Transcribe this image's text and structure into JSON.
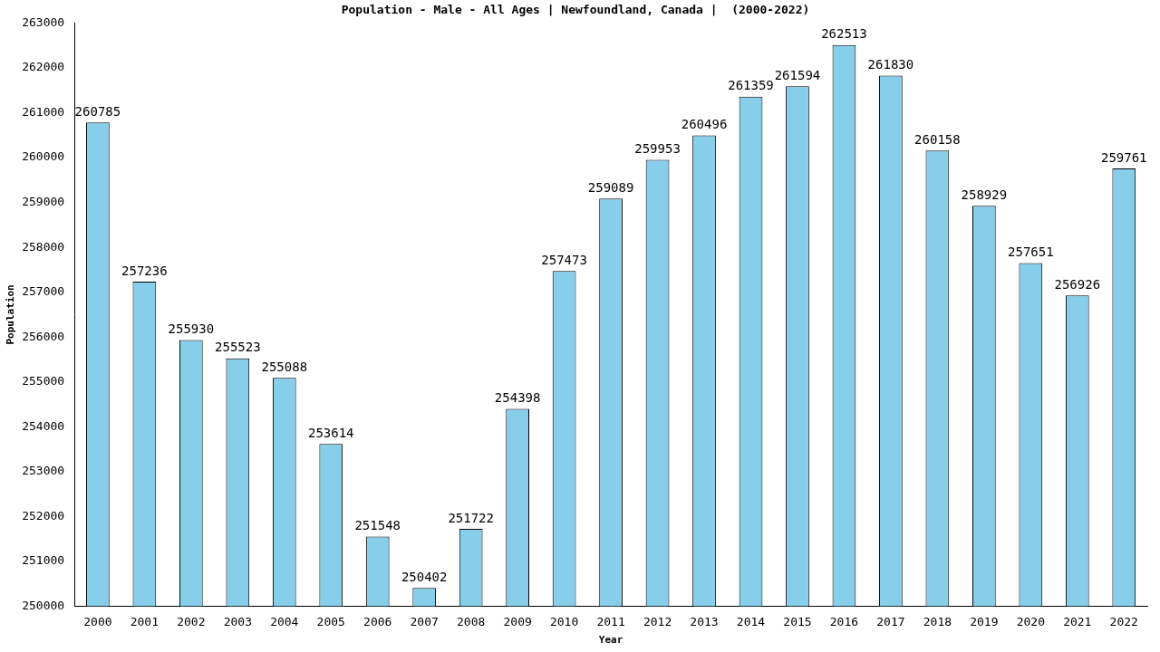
{
  "chart_data": {
    "type": "bar",
    "title": "Population - Male - All Ages | Newfoundland, Canada |  (2000-2022)",
    "x_label": "Year",
    "y_label": "Population",
    "categories": [
      "2000",
      "2001",
      "2002",
      "2003",
      "2004",
      "2005",
      "2006",
      "2007",
      "2008",
      "2009",
      "2010",
      "2011",
      "2012",
      "2013",
      "2014",
      "2015",
      "2016",
      "2017",
      "2018",
      "2019",
      "2020",
      "2021",
      "2022"
    ],
    "values": [
      260785,
      257236,
      255930,
      255523,
      255088,
      253614,
      251548,
      250402,
      251722,
      254398,
      257473,
      259089,
      259953,
      260496,
      261359,
      261594,
      262513,
      261830,
      260158,
      258929,
      257651,
      256926,
      259761
    ],
    "color": "#87ceeb",
    "ylim": [
      250000,
      263000
    ],
    "yticks": [
      250000,
      251000,
      252000,
      253000,
      254000,
      255000,
      256000,
      257000,
      258000,
      259000,
      260000,
      261000,
      262000,
      263000
    ],
    "grid": false,
    "data_labels": true
  }
}
